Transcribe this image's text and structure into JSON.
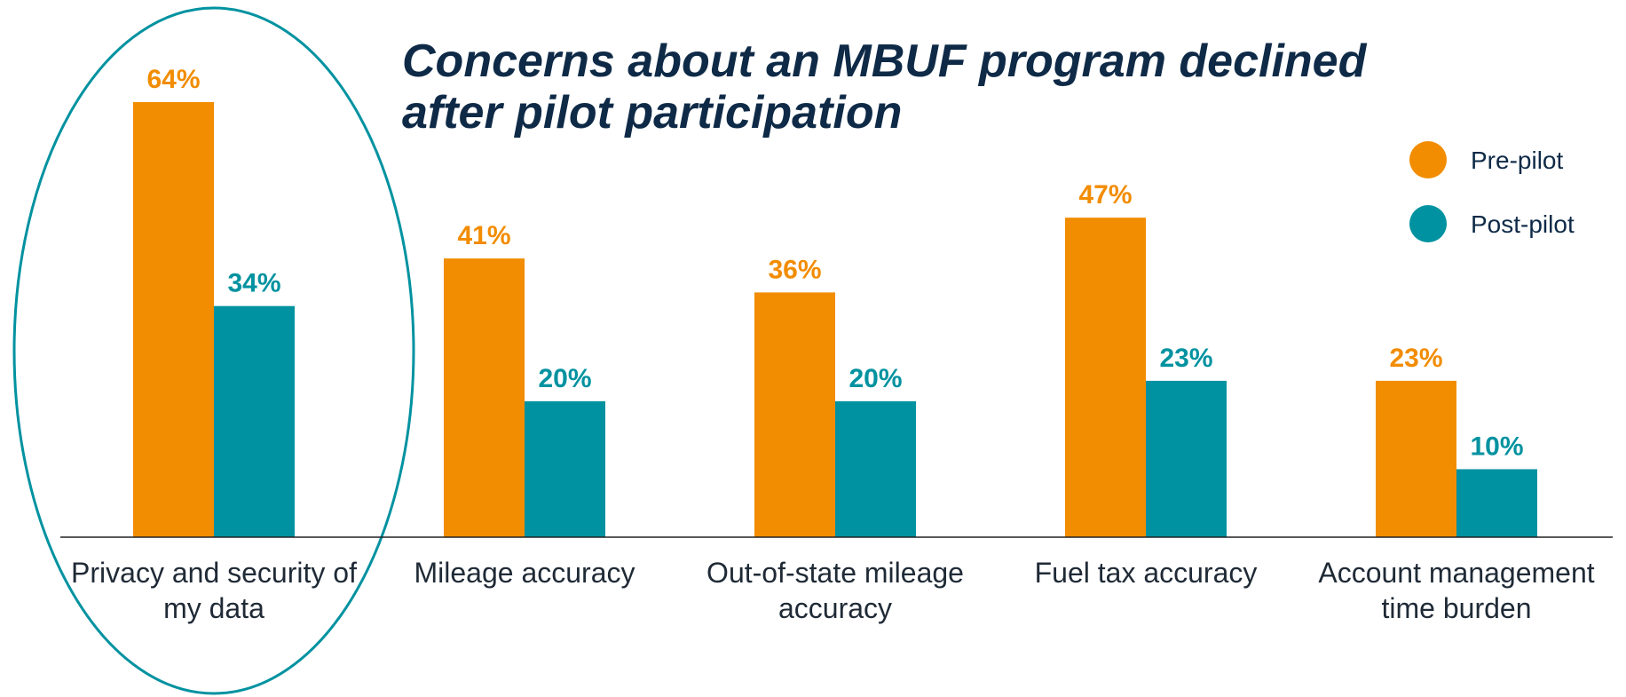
{
  "chart_data": {
    "type": "bar",
    "title": "Concerns about an MBUF program declined after pilot participation",
    "categories": [
      "Privacy and security of my data",
      "Mileage accuracy",
      "Out-of-state mileage accuracy",
      "Fuel tax accuracy",
      "Account management time burden"
    ],
    "series": [
      {
        "name": "Pre-pilot",
        "color": "#f28c00",
        "values": [
          64,
          41,
          36,
          47,
          23
        ],
        "value_labels": [
          "64%",
          "41%",
          "36%",
          "47%",
          "23%"
        ]
      },
      {
        "name": "Post-pilot",
        "color": "#0092a0",
        "values": [
          34,
          20,
          20,
          23,
          10
        ],
        "value_labels": [
          "34%",
          "20%",
          "20%",
          "23%",
          "10%"
        ]
      }
    ],
    "grid": false
  }
}
